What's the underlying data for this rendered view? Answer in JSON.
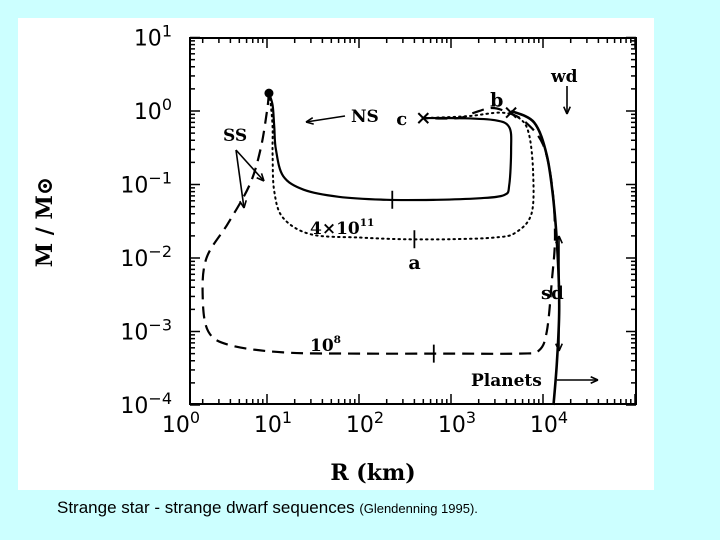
{
  "chart_data": {
    "type": "line",
    "xlabel": "R (km)",
    "ylabel": "M / M⊙",
    "xscale": "log",
    "yscale": "log",
    "xlim": [
      1,
      30000
    ],
    "ylim": [
      0.0001,
      10
    ],
    "x_tick_labels": [
      {
        "base": "10",
        "exp": "0",
        "value": 1
      },
      {
        "base": "10",
        "exp": "1",
        "value": 10
      },
      {
        "base": "10",
        "exp": "2",
        "value": 100
      },
      {
        "base": "10",
        "exp": "3",
        "value": 1000
      },
      {
        "base": "10",
        "exp": "4",
        "value": 10000
      }
    ],
    "y_tick_labels": [
      {
        "base": "10",
        "exp": "1",
        "value": 10
      },
      {
        "base": "10",
        "exp": "0",
        "value": 1
      },
      {
        "base": "10",
        "exp": "−1",
        "value": 0.1
      },
      {
        "base": "10",
        "exp": "−2",
        "value": 0.01
      },
      {
        "base": "10",
        "exp": "−3",
        "value": 0.001
      },
      {
        "base": "10",
        "exp": "−4",
        "value": 0.0001
      }
    ],
    "series": [
      {
        "style": "solid",
        "points": [
          [
            10.5,
            1.75
          ],
          [
            11.5,
            1.2
          ],
          [
            12,
            0.6
          ],
          [
            12.5,
            0.3
          ],
          [
            15,
            0.13
          ],
          [
            25,
            0.085
          ],
          [
            60,
            0.068
          ],
          [
            200,
            0.062
          ],
          [
            700,
            0.062
          ],
          [
            2000,
            0.065
          ],
          [
            3800,
            0.072
          ],
          [
            4300,
            0.1
          ],
          [
            4500,
            0.3
          ],
          [
            4300,
            0.6
          ],
          [
            3000,
            0.75
          ],
          [
            1200,
            0.8
          ],
          [
            500,
            0.8
          ]
        ]
      },
      {
        "style": "dotted",
        "points": [
          [
            10.5,
            1.75
          ],
          [
            11,
            1.2
          ],
          [
            11.5,
            0.6
          ],
          [
            11.5,
            0.25
          ],
          [
            12,
            0.08
          ],
          [
            15,
            0.035
          ],
          [
            30,
            0.021
          ],
          [
            100,
            0.019
          ],
          [
            300,
            0.018
          ],
          [
            1000,
            0.018
          ],
          [
            3000,
            0.019
          ],
          [
            5000,
            0.022
          ],
          [
            7500,
            0.04
          ],
          [
            7800,
            0.15
          ],
          [
            7000,
            0.5
          ],
          [
            5500,
            0.8
          ],
          [
            3500,
            0.95
          ],
          [
            1500,
            0.85
          ],
          [
            500,
            0.8
          ]
        ]
      },
      {
        "style": "dashed",
        "points": [
          [
            10.5,
            1.75
          ],
          [
            10,
            1
          ],
          [
            8.5,
            0.3
          ],
          [
            6.5,
            0.1
          ],
          [
            3.8,
            0.03
          ],
          [
            2.2,
            0.01
          ],
          [
            2,
            0.003
          ],
          [
            2.3,
            0.001
          ],
          [
            4,
            0.00065
          ],
          [
            15,
            0.00052
          ],
          [
            100,
            0.0005
          ],
          [
            1000,
            0.0005
          ],
          [
            5500,
            0.0005
          ],
          [
            9000,
            0.00055
          ],
          [
            11000,
            0.001
          ],
          [
            12500,
            0.005
          ],
          [
            13500,
            0.02
          ],
          [
            12500,
            0.1
          ],
          [
            10000,
            0.35
          ],
          [
            6500,
            0.7
          ],
          [
            4200,
            0.95
          ],
          [
            2800,
            1.1
          ],
          [
            1800,
            0.95
          ],
          [
            1200,
            0.8
          ],
          [
            500,
            0.8
          ]
        ]
      },
      {
        "style": "solid-heavy",
        "points": [
          [
            4500,
            1.0
          ],
          [
            8000,
            0.7
          ],
          [
            11000,
            0.25
          ],
          [
            13000,
            0.06
          ],
          [
            14500,
            0.01
          ],
          [
            15000,
            0.002
          ],
          [
            14200,
            0.0004
          ],
          [
            13000,
            0.0001
          ]
        ]
      }
    ],
    "markers": [
      {
        "label": "",
        "shape": "dot",
        "x": 10.5,
        "y": 1.75
      },
      {
        "label": "c",
        "shape": "cross",
        "x": 500,
        "y": 0.8
      },
      {
        "label": "b",
        "shape": "cross",
        "x": 4500,
        "y": 0.95
      },
      {
        "label": "a",
        "shape": "tick",
        "x": 400,
        "y": 0.018
      },
      {
        "label": "",
        "shape": "tick",
        "x": 230,
        "y": 0.062
      },
      {
        "label": "",
        "shape": "tick",
        "x": 650,
        "y": 0.0005
      }
    ],
    "annotations": [
      {
        "text": "NS"
      },
      {
        "text": "SS"
      },
      {
        "text": "wd"
      },
      {
        "text": "4×10",
        "sup": "11"
      },
      {
        "text": "10",
        "sup": "8"
      },
      {
        "text": "sd"
      },
      {
        "text": "Planets"
      }
    ]
  },
  "caption": {
    "main": "Strange star - strange dwarf sequences ",
    "cite": "(Glendenning 1995)."
  }
}
